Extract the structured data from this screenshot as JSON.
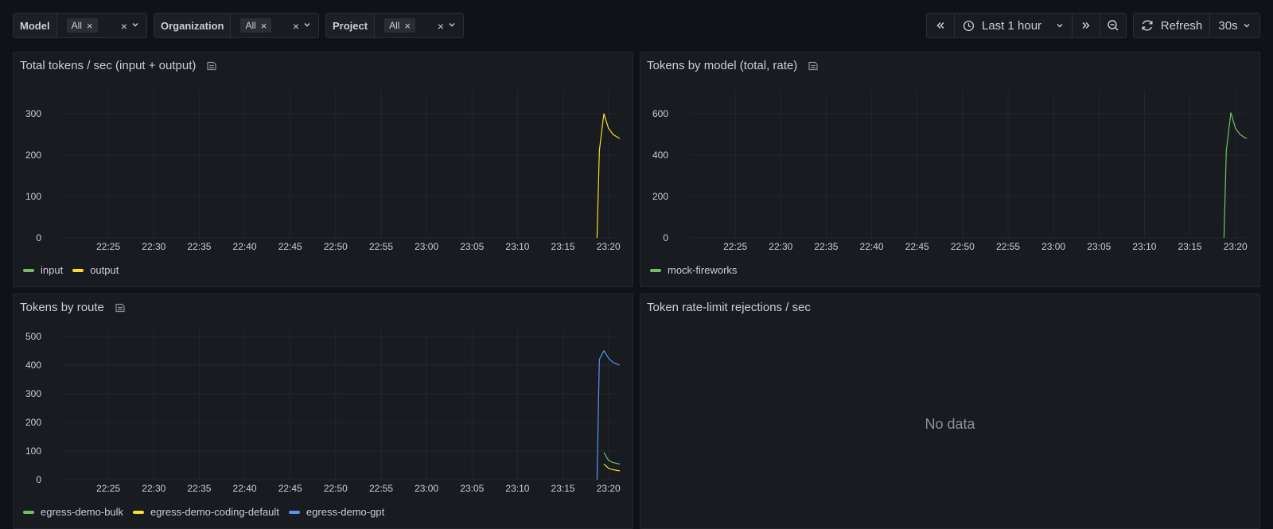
{
  "filters": [
    {
      "label": "Model",
      "value": "All"
    },
    {
      "label": "Organization",
      "value": "All"
    },
    {
      "label": "Project",
      "value": "All"
    }
  ],
  "time_picker": {
    "range": "Last 1 hour"
  },
  "refresh": {
    "label": "Refresh",
    "interval": "30s"
  },
  "colors": {
    "green": "#73bf69",
    "yellow": "#fade2a",
    "blue": "#5794f2"
  },
  "panels": [
    {
      "title": "Total tokens / sec (input + output)"
    },
    {
      "title": "Tokens by model (total, rate)"
    },
    {
      "title": "Tokens by route"
    },
    {
      "title": "Token rate-limit rejections / sec",
      "no_data": "No data"
    }
  ],
  "chart_data": [
    {
      "type": "line",
      "title": "Total tokens / sec (input + output)",
      "x_ticks": [
        "22:25",
        "22:30",
        "22:35",
        "22:40",
        "22:45",
        "22:50",
        "22:55",
        "23:00",
        "23:05",
        "23:10",
        "23:15",
        "23:20"
      ],
      "y_ticks": [
        0,
        100,
        200,
        300
      ],
      "ylim": [
        0,
        340
      ],
      "series": [
        {
          "name": "input",
          "color": "#73bf69",
          "points": []
        },
        {
          "name": "output",
          "color": "#fade2a",
          "points": [
            [
              "23:18:45",
              0
            ],
            [
              "23:19:00",
              210
            ],
            [
              "23:19:30",
              300
            ],
            [
              "23:20:00",
              265
            ],
            [
              "23:20:30",
              250
            ],
            [
              "23:21:00",
              243
            ],
            [
              "23:21:15",
              240
            ]
          ]
        }
      ],
      "legend": "bottom"
    },
    {
      "type": "line",
      "title": "Tokens by model (total, rate)",
      "x_ticks": [
        "22:25",
        "22:30",
        "22:35",
        "22:40",
        "22:45",
        "22:50",
        "22:55",
        "23:00",
        "23:05",
        "23:10",
        "23:15",
        "23:20"
      ],
      "y_ticks": [
        0,
        200,
        400,
        600
      ],
      "ylim": [
        0,
        680
      ],
      "series": [
        {
          "name": "mock-fireworks",
          "color": "#73bf69",
          "points": [
            [
              "23:18:45",
              0
            ],
            [
              "23:19:00",
              420
            ],
            [
              "23:19:30",
              605
            ],
            [
              "23:20:00",
              530
            ],
            [
              "23:20:30",
              500
            ],
            [
              "23:21:00",
              485
            ],
            [
              "23:21:15",
              480
            ]
          ]
        }
      ],
      "legend": "bottom"
    },
    {
      "type": "line",
      "title": "Tokens by route",
      "x_ticks": [
        "22:25",
        "22:30",
        "22:35",
        "22:40",
        "22:45",
        "22:50",
        "22:55",
        "23:00",
        "23:05",
        "23:10",
        "23:15",
        "23:20"
      ],
      "y_ticks": [
        0,
        100,
        200,
        300,
        400,
        500
      ],
      "ylim": [
        0,
        500
      ],
      "series": [
        {
          "name": "egress-demo-bulk",
          "color": "#73bf69",
          "points": [
            [
              "23:19:30",
              95
            ],
            [
              "23:20:00",
              68
            ],
            [
              "23:20:30",
              60
            ],
            [
              "23:21:00",
              56
            ],
            [
              "23:21:15",
              55
            ]
          ]
        },
        {
          "name": "egress-demo-coding-default",
          "color": "#fade2a",
          "points": [
            [
              "23:19:30",
              55
            ],
            [
              "23:20:00",
              40
            ],
            [
              "23:20:30",
              35
            ],
            [
              "23:21:00",
              32
            ],
            [
              "23:21:15",
              31
            ]
          ]
        },
        {
          "name": "egress-demo-gpt",
          "color": "#5794f2",
          "points": [
            [
              "23:18:45",
              0
            ],
            [
              "23:19:00",
              420
            ],
            [
              "23:19:30",
              450
            ],
            [
              "23:20:00",
              425
            ],
            [
              "23:20:30",
              410
            ],
            [
              "23:21:00",
              403
            ],
            [
              "23:21:15",
              400
            ]
          ]
        }
      ],
      "legend": "bottom"
    }
  ]
}
